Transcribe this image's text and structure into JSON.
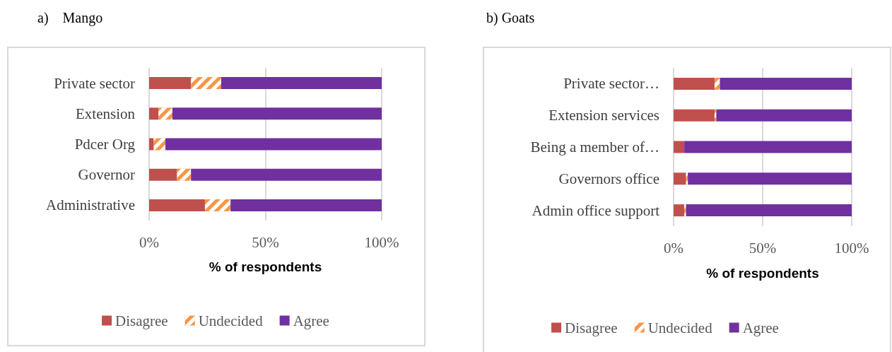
{
  "chart_data": [
    {
      "type": "bar",
      "title": "a)    Mango",
      "orientation": "horizontal",
      "stacked": true,
      "categories": [
        "Private sector",
        "Extension",
        "Pdcer Org",
        "Governor",
        "Administrative"
      ],
      "series": [
        {
          "name": "Disagree",
          "color": "#c0504d",
          "values": [
            18,
            4,
            2,
            12,
            24
          ]
        },
        {
          "name": "Undecided",
          "color": "#f79646",
          "values": [
            13,
            6,
            5,
            6,
            11
          ]
        },
        {
          "name": "Agree",
          "color": "#7030a0",
          "values": [
            69,
            90,
            93,
            82,
            65
          ]
        }
      ],
      "xlim": [
        0,
        100
      ],
      "xticks": [
        {
          "value": 0,
          "label": "0%"
        },
        {
          "value": 50,
          "label": "50%"
        },
        {
          "value": 100,
          "label": "100%"
        }
      ],
      "xlabel": "% of respondents",
      "grid": "x",
      "legend": "bottom"
    },
    {
      "type": "bar",
      "title": "b) Goats",
      "orientation": "horizontal",
      "stacked": true,
      "categories": [
        "Private sector…",
        "Extension services",
        "Being a member of…",
        "Governors office",
        "Admin office support"
      ],
      "series": [
        {
          "name": "Disagree",
          "color": "#c0504d",
          "values": [
            23,
            23,
            6,
            7,
            6
          ]
        },
        {
          "name": "Undecided",
          "color": "#f79646",
          "values": [
            3,
            1,
            0,
            1,
            1
          ]
        },
        {
          "name": "Agree",
          "color": "#7030a0",
          "values": [
            74,
            76,
            94,
            92,
            93
          ]
        }
      ],
      "xlim": [
        0,
        100
      ],
      "xticks": [
        {
          "value": 0,
          "label": "0%"
        },
        {
          "value": 50,
          "label": "50%"
        },
        {
          "value": 100,
          "label": "100%"
        }
      ],
      "xlabel": "% of respondents",
      "grid": "x",
      "legend": "bottom"
    }
  ]
}
